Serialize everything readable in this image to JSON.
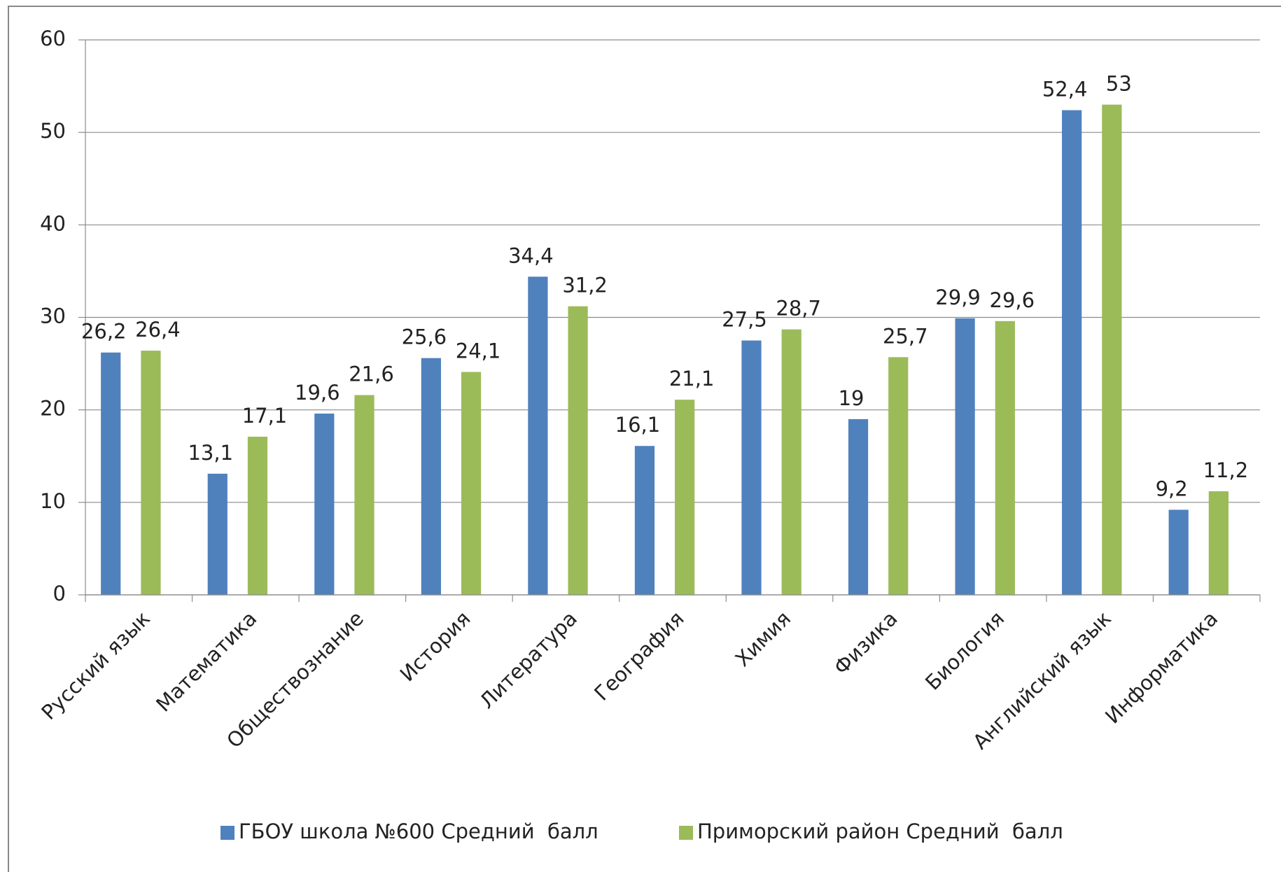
{
  "chart_data": {
    "type": "bar",
    "categories": [
      "Русский язык",
      "Математика",
      "Обществознание",
      "История",
      "Литература",
      "География",
      "Химия",
      "Физика",
      "Биология",
      "Английский язык",
      "Информатика"
    ],
    "series": [
      {
        "name": "ГБОУ школа №600 Средний  балл",
        "color": "#4f81bd",
        "values": [
          26.2,
          13.1,
          19.6,
          25.6,
          34.4,
          16.1,
          27.5,
          19,
          29.9,
          52.4,
          9.2
        ],
        "value_labels": [
          "26,2",
          "13,1",
          "19,6",
          "25,6",
          "34,4",
          "16,1",
          "27,5",
          "19",
          "29,9",
          "52,4",
          "9,2"
        ]
      },
      {
        "name": "Приморский район Средний  балл",
        "color": "#9bbb59",
        "values": [
          26.4,
          17.1,
          21.6,
          24.1,
          31.2,
          21.1,
          28.7,
          25.7,
          29.6,
          53,
          11.2
        ],
        "value_labels": [
          "26,4",
          "17,1",
          "21,6",
          "24,1",
          "31,2",
          "21,1",
          "28,7",
          "25,7",
          "29,6",
          "53",
          "11,2"
        ]
      }
    ],
    "ylim": [
      0,
      60
    ],
    "yticks": [
      0,
      10,
      20,
      30,
      40,
      50,
      60
    ],
    "grid": true,
    "legend": "bottom"
  }
}
